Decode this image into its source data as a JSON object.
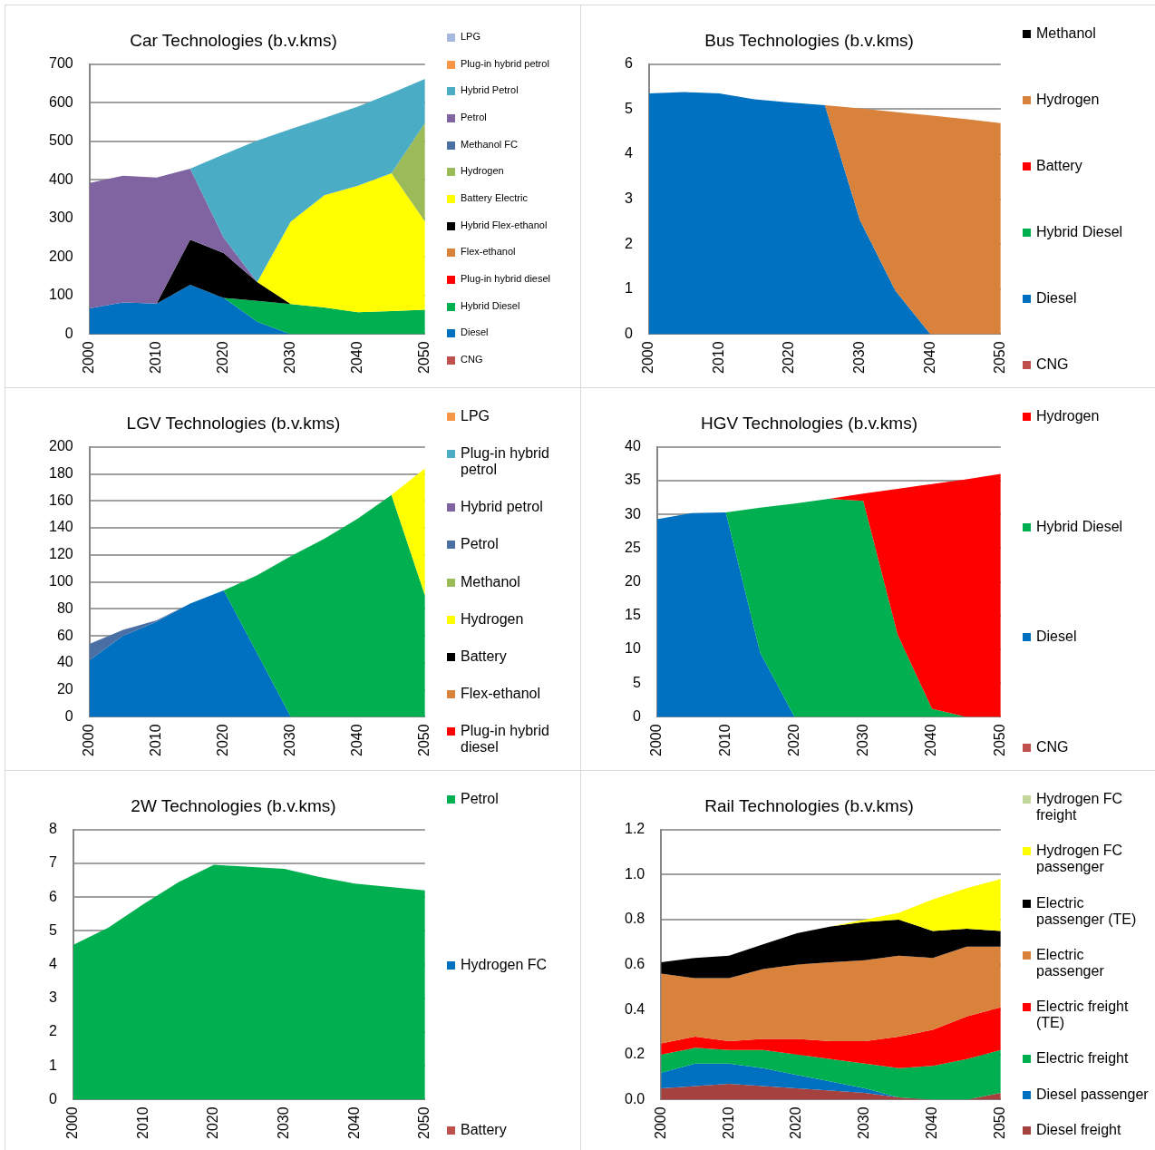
{
  "chart_data": [
    {
      "type": "area",
      "title": "Car Technologies (b.v.kms)",
      "x": [
        2000,
        2005,
        2010,
        2015,
        2020,
        2025,
        2030,
        2035,
        2040,
        2045,
        2050
      ],
      "xlim": [
        2000,
        2050
      ],
      "xticks": [
        2000,
        2010,
        2020,
        2030,
        2040,
        2050
      ],
      "ylim": [
        0,
        700
      ],
      "yticks": [
        0,
        100,
        200,
        300,
        400,
        500,
        600,
        700
      ],
      "stacked": true,
      "grid": "y",
      "legend": "right",
      "series": [
        {
          "name": "CNG",
          "color": "#c0504d",
          "values": [
            null,
            null,
            null,
            null,
            null,
            null,
            null,
            null,
            null,
            null,
            null
          ]
        },
        {
          "name": "Diesel",
          "color": "#0070c0",
          "values": [
            67,
            82,
            79,
            128,
            94,
            32,
            0,
            null,
            null,
            null,
            null
          ]
        },
        {
          "name": "Hybrid Diesel",
          "color": "#00b050",
          "values": [
            null,
            null,
            null,
            null,
            0,
            54,
            78,
            69,
            57,
            60,
            63
          ]
        },
        {
          "name": "Plug-in hybrid diesel",
          "color": "#ff0000",
          "values": [
            null,
            null,
            null,
            null,
            null,
            null,
            null,
            null,
            null,
            null,
            null
          ]
        },
        {
          "name": "Flex-ethanol",
          "color": "#d9823b",
          "values": [
            null,
            null,
            null,
            null,
            null,
            null,
            null,
            null,
            null,
            null,
            null
          ]
        },
        {
          "name": "Hybrid Flex-ethanol",
          "color": "#000000",
          "values": [
            null,
            null,
            0,
            117,
            116,
            49,
            0,
            null,
            null,
            null,
            null
          ]
        },
        {
          "name": "Battery Electric",
          "color": "#ffff00",
          "values": [
            null,
            null,
            null,
            null,
            null,
            0,
            214,
            291,
            328,
            357,
            229
          ]
        },
        {
          "name": "Hydrogen",
          "color": "#9bbb59",
          "values": [
            null,
            null,
            null,
            null,
            null,
            null,
            null,
            null,
            null,
            0,
            256
          ]
        },
        {
          "name": "Methanol FC",
          "color": "#4a6fa5",
          "values": [
            null,
            null,
            null,
            null,
            null,
            null,
            null,
            null,
            null,
            null,
            null
          ]
        },
        {
          "name": "Petrol",
          "color": "#8064a2",
          "values": [
            325,
            329,
            327,
            184,
            40,
            0,
            null,
            null,
            null,
            null,
            null
          ]
        },
        {
          "name": "Hybrid Petrol",
          "color": "#4bacc6",
          "values": [
            null,
            null,
            null,
            0,
            216,
            367,
            240,
            201,
            205,
            208,
            114
          ]
        },
        {
          "name": "Plug-in hybrid petrol",
          "color": "#f79646",
          "values": [
            null,
            null,
            null,
            null,
            null,
            null,
            null,
            null,
            null,
            null,
            null
          ]
        },
        {
          "name": "LPG",
          "color": "#a6b9dd",
          "values": [
            null,
            null,
            null,
            null,
            null,
            null,
            null,
            null,
            null,
            null,
            null
          ]
        }
      ]
    },
    {
      "type": "area",
      "title": "Bus Technologies (b.v.kms)",
      "x": [
        2000,
        2005,
        2010,
        2015,
        2020,
        2025,
        2030,
        2035,
        2040,
        2045,
        2050
      ],
      "xlim": [
        2000,
        2050
      ],
      "xticks": [
        2000,
        2010,
        2020,
        2030,
        2040,
        2050
      ],
      "ylim": [
        0,
        6
      ],
      "yticks": [
        0,
        1,
        2,
        3,
        4,
        5,
        6
      ],
      "stacked": true,
      "grid": "y",
      "legend": "right",
      "series": [
        {
          "name": "CNG",
          "color": "#c0504d",
          "values": [
            null,
            null,
            null,
            null,
            null,
            null,
            null,
            null,
            null,
            null,
            null
          ]
        },
        {
          "name": "Diesel",
          "color": "#0070c0",
          "values": [
            5.35,
            5.38,
            5.35,
            5.22,
            5.15,
            5.09,
            2.53,
            0.97,
            0,
            null,
            null
          ]
        },
        {
          "name": "Hybrid Diesel",
          "color": "#00b050",
          "values": [
            null,
            null,
            null,
            null,
            null,
            null,
            null,
            null,
            null,
            null,
            null
          ]
        },
        {
          "name": "Battery",
          "color": "#ff0000",
          "values": [
            null,
            null,
            null,
            null,
            null,
            null,
            null,
            null,
            null,
            null,
            null
          ]
        },
        {
          "name": "Hydrogen",
          "color": "#d9823b",
          "values": [
            null,
            null,
            null,
            null,
            null,
            0,
            2.49,
            3.97,
            4.86,
            4.78,
            4.69
          ]
        },
        {
          "name": "Methanol",
          "color": "#000000",
          "values": [
            null,
            null,
            null,
            null,
            null,
            null,
            null,
            null,
            null,
            null,
            null
          ]
        }
      ]
    },
    {
      "type": "area",
      "title": "LGV Technologies (b.v.kms)",
      "x": [
        2000,
        2005,
        2010,
        2015,
        2020,
        2025,
        2030,
        2035,
        2040,
        2045,
        2050
      ],
      "xlim": [
        2000,
        2050
      ],
      "xticks": [
        2000,
        2010,
        2020,
        2030,
        2040,
        2050
      ],
      "ylim": [
        0,
        200
      ],
      "yticks": [
        0,
        20,
        40,
        60,
        80,
        100,
        120,
        140,
        160,
        180,
        200
      ],
      "stacked": true,
      "grid": "y",
      "legend": "right",
      "series": [
        {
          "color": "#0070c0",
          "values": [
            42,
            60,
            70.5,
            84,
            93.7,
            47,
            0,
            null,
            null,
            null,
            null
          ]
        },
        {
          "color": "#00b050",
          "values": [
            null,
            null,
            null,
            null,
            0,
            58,
            119,
            132,
            147,
            164.5,
            90
          ]
        },
        {
          "name": "Plug-in hybrid diesel",
          "color": "#ff0000",
          "values": [
            null,
            null,
            null,
            null,
            null,
            null,
            null,
            null,
            null,
            null,
            null
          ]
        },
        {
          "name": "Flex-ethanol",
          "color": "#d9823b",
          "values": [
            null,
            null,
            null,
            null,
            null,
            null,
            null,
            null,
            null,
            null,
            null
          ]
        },
        {
          "name": "Battery",
          "color": "#000000",
          "values": [
            null,
            null,
            null,
            null,
            null,
            null,
            null,
            null,
            null,
            null,
            null
          ]
        },
        {
          "name": "Hydrogen",
          "color": "#ffff00",
          "values": [
            null,
            null,
            null,
            null,
            null,
            null,
            null,
            null,
            null,
            0,
            94
          ]
        },
        {
          "name": "Methanol",
          "color": "#9bbb59",
          "values": [
            null,
            null,
            null,
            null,
            null,
            null,
            null,
            null,
            null,
            null,
            null
          ]
        },
        {
          "name": "Petrol",
          "color": "#4a6fa5",
          "values": [
            12,
            4.5,
            1,
            0,
            null,
            null,
            null,
            null,
            null,
            null,
            null
          ]
        },
        {
          "name": "Hybrid petrol",
          "color": "#8064a2",
          "values": [
            null,
            null,
            null,
            null,
            null,
            null,
            null,
            null,
            null,
            null,
            null
          ]
        },
        {
          "name": "Plug-in hybrid petrol",
          "color": "#4bacc6",
          "values": [
            null,
            null,
            null,
            null,
            null,
            null,
            null,
            null,
            null,
            null,
            null
          ]
        },
        {
          "name": "LPG",
          "color": "#f79646",
          "values": [
            null,
            null,
            null,
            null,
            null,
            null,
            null,
            null,
            null,
            null,
            null
          ]
        }
      ]
    },
    {
      "type": "area",
      "title": "HGV Technologies (b.v.kms)",
      "x": [
        2000,
        2005,
        2010,
        2015,
        2020,
        2025,
        2030,
        2035,
        2040,
        2045,
        2050
      ],
      "xlim": [
        2000,
        2050
      ],
      "xticks": [
        2000,
        2010,
        2020,
        2030,
        2040,
        2050
      ],
      "ylim": [
        0,
        40
      ],
      "yticks": [
        0,
        5,
        10,
        15,
        20,
        25,
        30,
        35,
        40
      ],
      "stacked": true,
      "grid": "y",
      "legend": "right",
      "series": [
        {
          "name": "CNG",
          "color": "#c0504d",
          "values": [
            null,
            null,
            null,
            null,
            null,
            null,
            null,
            null,
            null,
            null,
            null
          ]
        },
        {
          "name": "Diesel",
          "color": "#0070c0",
          "values": [
            29.3,
            30.2,
            30.3,
            9.5,
            0,
            null,
            null,
            null,
            null,
            null,
            null
          ]
        },
        {
          "name": "Hybrid Diesel",
          "color": "#00b050",
          "values": [
            null,
            null,
            0,
            21.5,
            31.6,
            32.3,
            32,
            12.2,
            1.2,
            0,
            null
          ]
        },
        {
          "name": "Hydrogen",
          "color": "#ff0000",
          "values": [
            null,
            null,
            null,
            null,
            null,
            0,
            1.1,
            21.6,
            33.3,
            35.2,
            36
          ]
        }
      ]
    },
    {
      "type": "area",
      "title": "2W Technologies (b.v.kms)",
      "x": [
        2000,
        2005,
        2010,
        2015,
        2020,
        2025,
        2030,
        2035,
        2040,
        2045,
        2050
      ],
      "xlim": [
        2000,
        2050
      ],
      "xticks": [
        2000,
        2010,
        2020,
        2030,
        2040,
        2050
      ],
      "ylim": [
        0,
        8
      ],
      "yticks": [
        0,
        1,
        2,
        3,
        4,
        5,
        6,
        7,
        8
      ],
      "stacked": true,
      "grid": "y",
      "legend": "right",
      "series": [
        {
          "name": "Battery",
          "color": "#c0504d",
          "values": [
            null,
            null,
            null,
            null,
            null,
            null,
            null,
            null,
            null,
            null,
            null
          ]
        },
        {
          "name": "Hydrogen FC",
          "color": "#0070c0",
          "values": [
            null,
            null,
            null,
            null,
            null,
            null,
            null,
            null,
            null,
            null,
            null
          ]
        },
        {
          "name": "Petrol",
          "color": "#00b050",
          "values": [
            4.59,
            5.1,
            5.8,
            6.45,
            6.96,
            6.9,
            6.84,
            6.6,
            6.4,
            6.3,
            6.2
          ]
        }
      ]
    },
    {
      "type": "area",
      "title": "Rail Technologies (b.v.kms)",
      "x": [
        2000,
        2005,
        2010,
        2015,
        2020,
        2025,
        2030,
        2035,
        2040,
        2045,
        2050
      ],
      "xlim": [
        2000,
        2050
      ],
      "xticks": [
        2000,
        2010,
        2020,
        2030,
        2040,
        2050
      ],
      "ylim": [
        0,
        1.2
      ],
      "yticks": [
        {
          "value": 0,
          "label": "0.0"
        },
        {
          "value": 0.2,
          "label": "0.2"
        },
        {
          "value": 0.4,
          "label": "0.4"
        },
        {
          "value": 0.6,
          "label": "0.6"
        },
        {
          "value": 0.8,
          "label": "0.8"
        },
        {
          "value": 1,
          "label": "1.0"
        },
        {
          "value": 1.2,
          "label": "1.2"
        }
      ],
      "stacked": true,
      "grid": "y",
      "legend": "right",
      "series": [
        {
          "name": "Diesel freight",
          "color": "#a5423f",
          "values": [
            0.05,
            0.06,
            0.07,
            0.06,
            0.05,
            0.04,
            0.03,
            0.01,
            0,
            0,
            0.03
          ]
        },
        {
          "name": "Diesel passenger",
          "color": "#0070c0",
          "values": [
            0.07,
            0.1,
            0.09,
            0.08,
            0.06,
            0.04,
            0.02,
            0,
            null,
            null,
            null
          ]
        },
        {
          "name": "Electric freight",
          "color": "#00b050",
          "values": [
            0.08,
            0.07,
            0.06,
            0.08,
            0.09,
            0.1,
            0.11,
            0.13,
            0.15,
            0.18,
            0.19
          ]
        },
        {
          "name": "Electric freight (TE)",
          "color": "#ff0000",
          "values": [
            0.05,
            0.05,
            0.04,
            0.05,
            0.07,
            0.08,
            0.1,
            0.14,
            0.16,
            0.19,
            0.19
          ]
        },
        {
          "name": "Electric passenger",
          "color": "#d9823b",
          "values": [
            0.31,
            0.26,
            0.28,
            0.31,
            0.33,
            0.35,
            0.36,
            0.36,
            0.32,
            0.31,
            0.27
          ]
        },
        {
          "name": "Electric passenger (TE)",
          "color": "#000000",
          "values": [
            0.05,
            0.09,
            0.1,
            0.11,
            0.14,
            0.16,
            0.17,
            0.16,
            0.12,
            0.08,
            0.07
          ]
        },
        {
          "name": "Hydrogen FC passenger",
          "color": "#ffff00",
          "values": [
            null,
            null,
            null,
            null,
            null,
            0,
            0.01,
            0.03,
            0.14,
            0.18,
            0.23
          ]
        },
        {
          "name": "Hydrogen FC freight",
          "color": "#c3d69b",
          "values": [
            null,
            null,
            null,
            null,
            null,
            null,
            null,
            null,
            null,
            null,
            null
          ]
        }
      ]
    }
  ]
}
